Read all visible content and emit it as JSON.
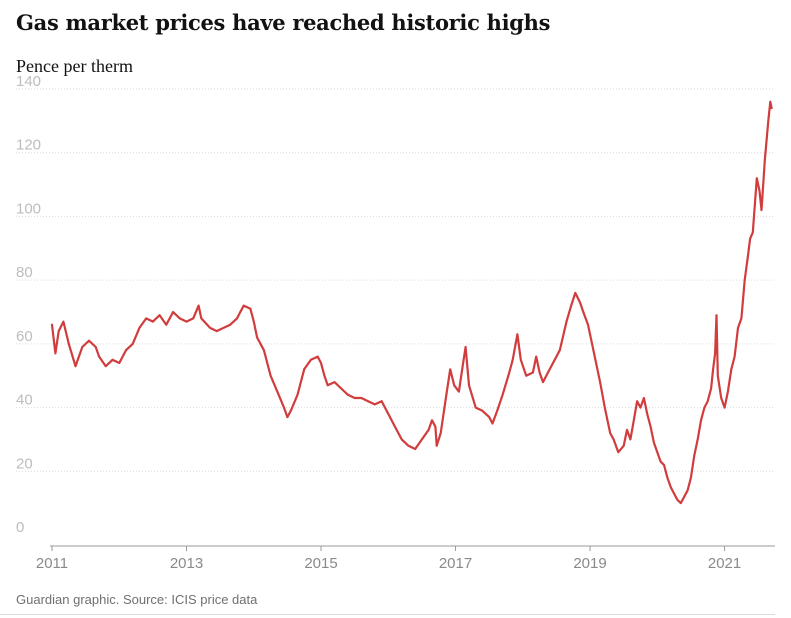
{
  "header": {
    "title": "Gas market prices have reached historic highs",
    "subtitle": "Pence per therm"
  },
  "footer": {
    "source": "Guardian graphic. Source: ICIS price data"
  },
  "colors": {
    "line": "#d13c3c",
    "grid": "#d9d9d9",
    "axis": "#9a9a9a"
  },
  "chart_data": {
    "type": "line",
    "title": "Gas market prices have reached historic highs",
    "ylabel": "Pence per therm",
    "xlabel": "",
    "xlim": [
      2011.0,
      2021.75
    ],
    "ylim": [
      0,
      140
    ],
    "yticks": [
      0,
      20,
      40,
      60,
      80,
      100,
      120,
      140
    ],
    "xticks": [
      2011,
      2013,
      2015,
      2017,
      2019,
      2021
    ],
    "grid": true,
    "legend": "none",
    "series": [
      {
        "values": [
          [
            2011.0,
            66
          ],
          [
            2011.05,
            57
          ],
          [
            2011.1,
            64
          ],
          [
            2011.17,
            67
          ],
          [
            2011.25,
            60
          ],
          [
            2011.35,
            53
          ],
          [
            2011.45,
            59
          ],
          [
            2011.55,
            61
          ],
          [
            2011.65,
            59
          ],
          [
            2011.7,
            56
          ],
          [
            2011.8,
            53
          ],
          [
            2011.9,
            55
          ],
          [
            2012.0,
            54
          ],
          [
            2012.1,
            58
          ],
          [
            2012.2,
            60
          ],
          [
            2012.3,
            65
          ],
          [
            2012.4,
            68
          ],
          [
            2012.5,
            67
          ],
          [
            2012.6,
            69
          ],
          [
            2012.7,
            66
          ],
          [
            2012.8,
            70
          ],
          [
            2012.9,
            68
          ],
          [
            2013.0,
            67
          ],
          [
            2013.1,
            68
          ],
          [
            2013.18,
            72
          ],
          [
            2013.22,
            68
          ],
          [
            2013.35,
            65
          ],
          [
            2013.45,
            64
          ],
          [
            2013.55,
            65
          ],
          [
            2013.65,
            66
          ],
          [
            2013.75,
            68
          ],
          [
            2013.8,
            70
          ],
          [
            2013.85,
            72
          ],
          [
            2013.95,
            71
          ],
          [
            2014.0,
            67
          ],
          [
            2014.05,
            62
          ],
          [
            2014.15,
            58
          ],
          [
            2014.25,
            50
          ],
          [
            2014.35,
            45
          ],
          [
            2014.45,
            40
          ],
          [
            2014.5,
            37
          ],
          [
            2014.55,
            39
          ],
          [
            2014.65,
            44
          ],
          [
            2014.75,
            52
          ],
          [
            2014.85,
            55
          ],
          [
            2014.95,
            56
          ],
          [
            2015.0,
            54
          ],
          [
            2015.05,
            50
          ],
          [
            2015.1,
            47
          ],
          [
            2015.2,
            48
          ],
          [
            2015.3,
            46
          ],
          [
            2015.4,
            44
          ],
          [
            2015.5,
            43
          ],
          [
            2015.6,
            43
          ],
          [
            2015.7,
            42
          ],
          [
            2015.8,
            41
          ],
          [
            2015.9,
            42
          ],
          [
            2016.0,
            38
          ],
          [
            2016.1,
            34
          ],
          [
            2016.2,
            30
          ],
          [
            2016.3,
            28
          ],
          [
            2016.4,
            27
          ],
          [
            2016.5,
            30
          ],
          [
            2016.6,
            33
          ],
          [
            2016.65,
            36
          ],
          [
            2016.7,
            34
          ],
          [
            2016.72,
            28
          ],
          [
            2016.78,
            32
          ],
          [
            2016.85,
            42
          ],
          [
            2016.92,
            52
          ],
          [
            2016.98,
            47
          ],
          [
            2017.05,
            45
          ],
          [
            2017.12,
            55
          ],
          [
            2017.15,
            59
          ],
          [
            2017.2,
            47
          ],
          [
            2017.3,
            40
          ],
          [
            2017.4,
            39
          ],
          [
            2017.5,
            37
          ],
          [
            2017.55,
            35
          ],
          [
            2017.62,
            39
          ],
          [
            2017.7,
            44
          ],
          [
            2017.8,
            51
          ],
          [
            2017.85,
            55
          ],
          [
            2017.92,
            63
          ],
          [
            2017.97,
            55
          ],
          [
            2018.05,
            50
          ],
          [
            2018.15,
            51
          ],
          [
            2018.2,
            56
          ],
          [
            2018.25,
            51
          ],
          [
            2018.3,
            48
          ],
          [
            2018.4,
            52
          ],
          [
            2018.5,
            56
          ],
          [
            2018.55,
            58
          ],
          [
            2018.65,
            67
          ],
          [
            2018.72,
            72
          ],
          [
            2018.78,
            76
          ],
          [
            2018.85,
            73
          ],
          [
            2018.9,
            70
          ],
          [
            2018.97,
            66
          ],
          [
            2019.02,
            61
          ],
          [
            2019.08,
            55
          ],
          [
            2019.15,
            48
          ],
          [
            2019.22,
            40
          ],
          [
            2019.3,
            32
          ],
          [
            2019.35,
            30
          ],
          [
            2019.42,
            26
          ],
          [
            2019.5,
            28
          ],
          [
            2019.55,
            33
          ],
          [
            2019.6,
            30
          ],
          [
            2019.65,
            36
          ],
          [
            2019.7,
            42
          ],
          [
            2019.75,
            40
          ],
          [
            2019.8,
            43
          ],
          [
            2019.85,
            38
          ],
          [
            2019.9,
            34
          ],
          [
            2019.95,
            29
          ],
          [
            2020.0,
            26
          ],
          [
            2020.05,
            23
          ],
          [
            2020.1,
            22
          ],
          [
            2020.15,
            18
          ],
          [
            2020.2,
            15
          ],
          [
            2020.25,
            13
          ],
          [
            2020.3,
            11
          ],
          [
            2020.35,
            10
          ],
          [
            2020.4,
            12
          ],
          [
            2020.45,
            14
          ],
          [
            2020.5,
            18
          ],
          [
            2020.55,
            25
          ],
          [
            2020.6,
            30
          ],
          [
            2020.65,
            36
          ],
          [
            2020.7,
            40
          ],
          [
            2020.75,
            42
          ],
          [
            2020.8,
            46
          ],
          [
            2020.83,
            52
          ],
          [
            2020.86,
            57
          ],
          [
            2020.88,
            69
          ],
          [
            2020.9,
            50
          ],
          [
            2020.95,
            43
          ],
          [
            2021.0,
            40
          ],
          [
            2021.05,
            45
          ],
          [
            2021.1,
            52
          ],
          [
            2021.15,
            56
          ],
          [
            2021.2,
            65
          ],
          [
            2021.25,
            68
          ],
          [
            2021.3,
            80
          ],
          [
            2021.35,
            88
          ],
          [
            2021.38,
            93
          ],
          [
            2021.42,
            95
          ],
          [
            2021.48,
            112
          ],
          [
            2021.52,
            108
          ],
          [
            2021.55,
            102
          ],
          [
            2021.6,
            118
          ],
          [
            2021.65,
            130
          ],
          [
            2021.68,
            136
          ],
          [
            2021.7,
            134
          ]
        ]
      }
    ]
  }
}
